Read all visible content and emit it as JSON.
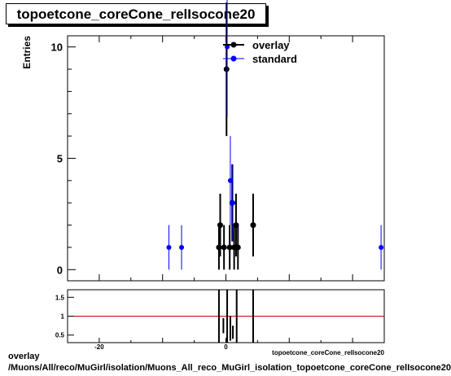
{
  "title": "topoetcone_coreCone_relIsocone20",
  "footer": {
    "line1": "overlay",
    "line2": "/Muons/All/reco/MuGirl/isolation/Muons_All_reco_MuGirl_isolation_topoetcone_coreCone_relIsocone20"
  },
  "chart_data": [
    {
      "type": "scatter",
      "ylabel": "Entries",
      "xlabel": "topoetcone_coreCone_relIsocone20",
      "xlim": [
        -25,
        25
      ],
      "ylim": [
        -0.5,
        10.5
      ],
      "yticks": [
        0,
        5,
        10
      ],
      "legend": "top-right",
      "series": [
        {
          "name": "overlay",
          "color": "#000000",
          "points": [
            {
              "x": -1.1,
              "y": 1,
              "err": 1
            },
            {
              "x": -0.9,
              "y": 2,
              "err": 1.41
            },
            {
              "x": -0.3,
              "y": 1,
              "err": 1
            },
            {
              "x": 0.1,
              "y": 9,
              "err": 3
            },
            {
              "x": 0.6,
              "y": 1,
              "err": 1
            },
            {
              "x": 1.0,
              "y": 3,
              "err": 1.73
            },
            {
              "x": 1.3,
              "y": 1,
              "err": 1
            },
            {
              "x": 1.6,
              "y": 2,
              "err": 1.41
            },
            {
              "x": 1.9,
              "y": 1,
              "err": 1
            },
            {
              "x": 4.3,
              "y": 2,
              "err": 1.41
            }
          ]
        },
        {
          "name": "standard",
          "color": "#0000ff",
          "points": [
            {
              "x": -9.0,
              "y": 1,
              "err": 1
            },
            {
              "x": -7.0,
              "y": 1,
              "err": 1
            },
            {
              "x": 0.2,
              "y": 10,
              "err": 3.16
            },
            {
              "x": 0.7,
              "y": 4,
              "err": 2
            },
            {
              "x": 1.1,
              "y": 3,
              "err": 1.73
            },
            {
              "x": 24.5,
              "y": 1,
              "err": 1
            }
          ]
        }
      ]
    },
    {
      "type": "line",
      "xlim": [
        -25,
        25
      ],
      "ylim": [
        0.3,
        1.7
      ],
      "xticks": [
        -20,
        0
      ],
      "yticks": [
        0.5,
        1,
        1.5
      ],
      "reference_line": 1,
      "reference_color": "#cc0000",
      "bars": [
        {
          "x": -1.1,
          "lo": 0.3,
          "hi": 1.7
        },
        {
          "x": -0.4,
          "lo": 0.55,
          "hi": 0.95
        },
        {
          "x": 0.2,
          "lo": 0.3,
          "hi": 1.7
        },
        {
          "x": 0.7,
          "lo": 0.35,
          "hi": 1.0
        },
        {
          "x": 1.1,
          "lo": 0.4,
          "hi": 0.75
        },
        {
          "x": 1.7,
          "lo": 0.3,
          "hi": 1.7
        },
        {
          "x": 4.3,
          "lo": 0.3,
          "hi": 1.7
        }
      ]
    }
  ]
}
